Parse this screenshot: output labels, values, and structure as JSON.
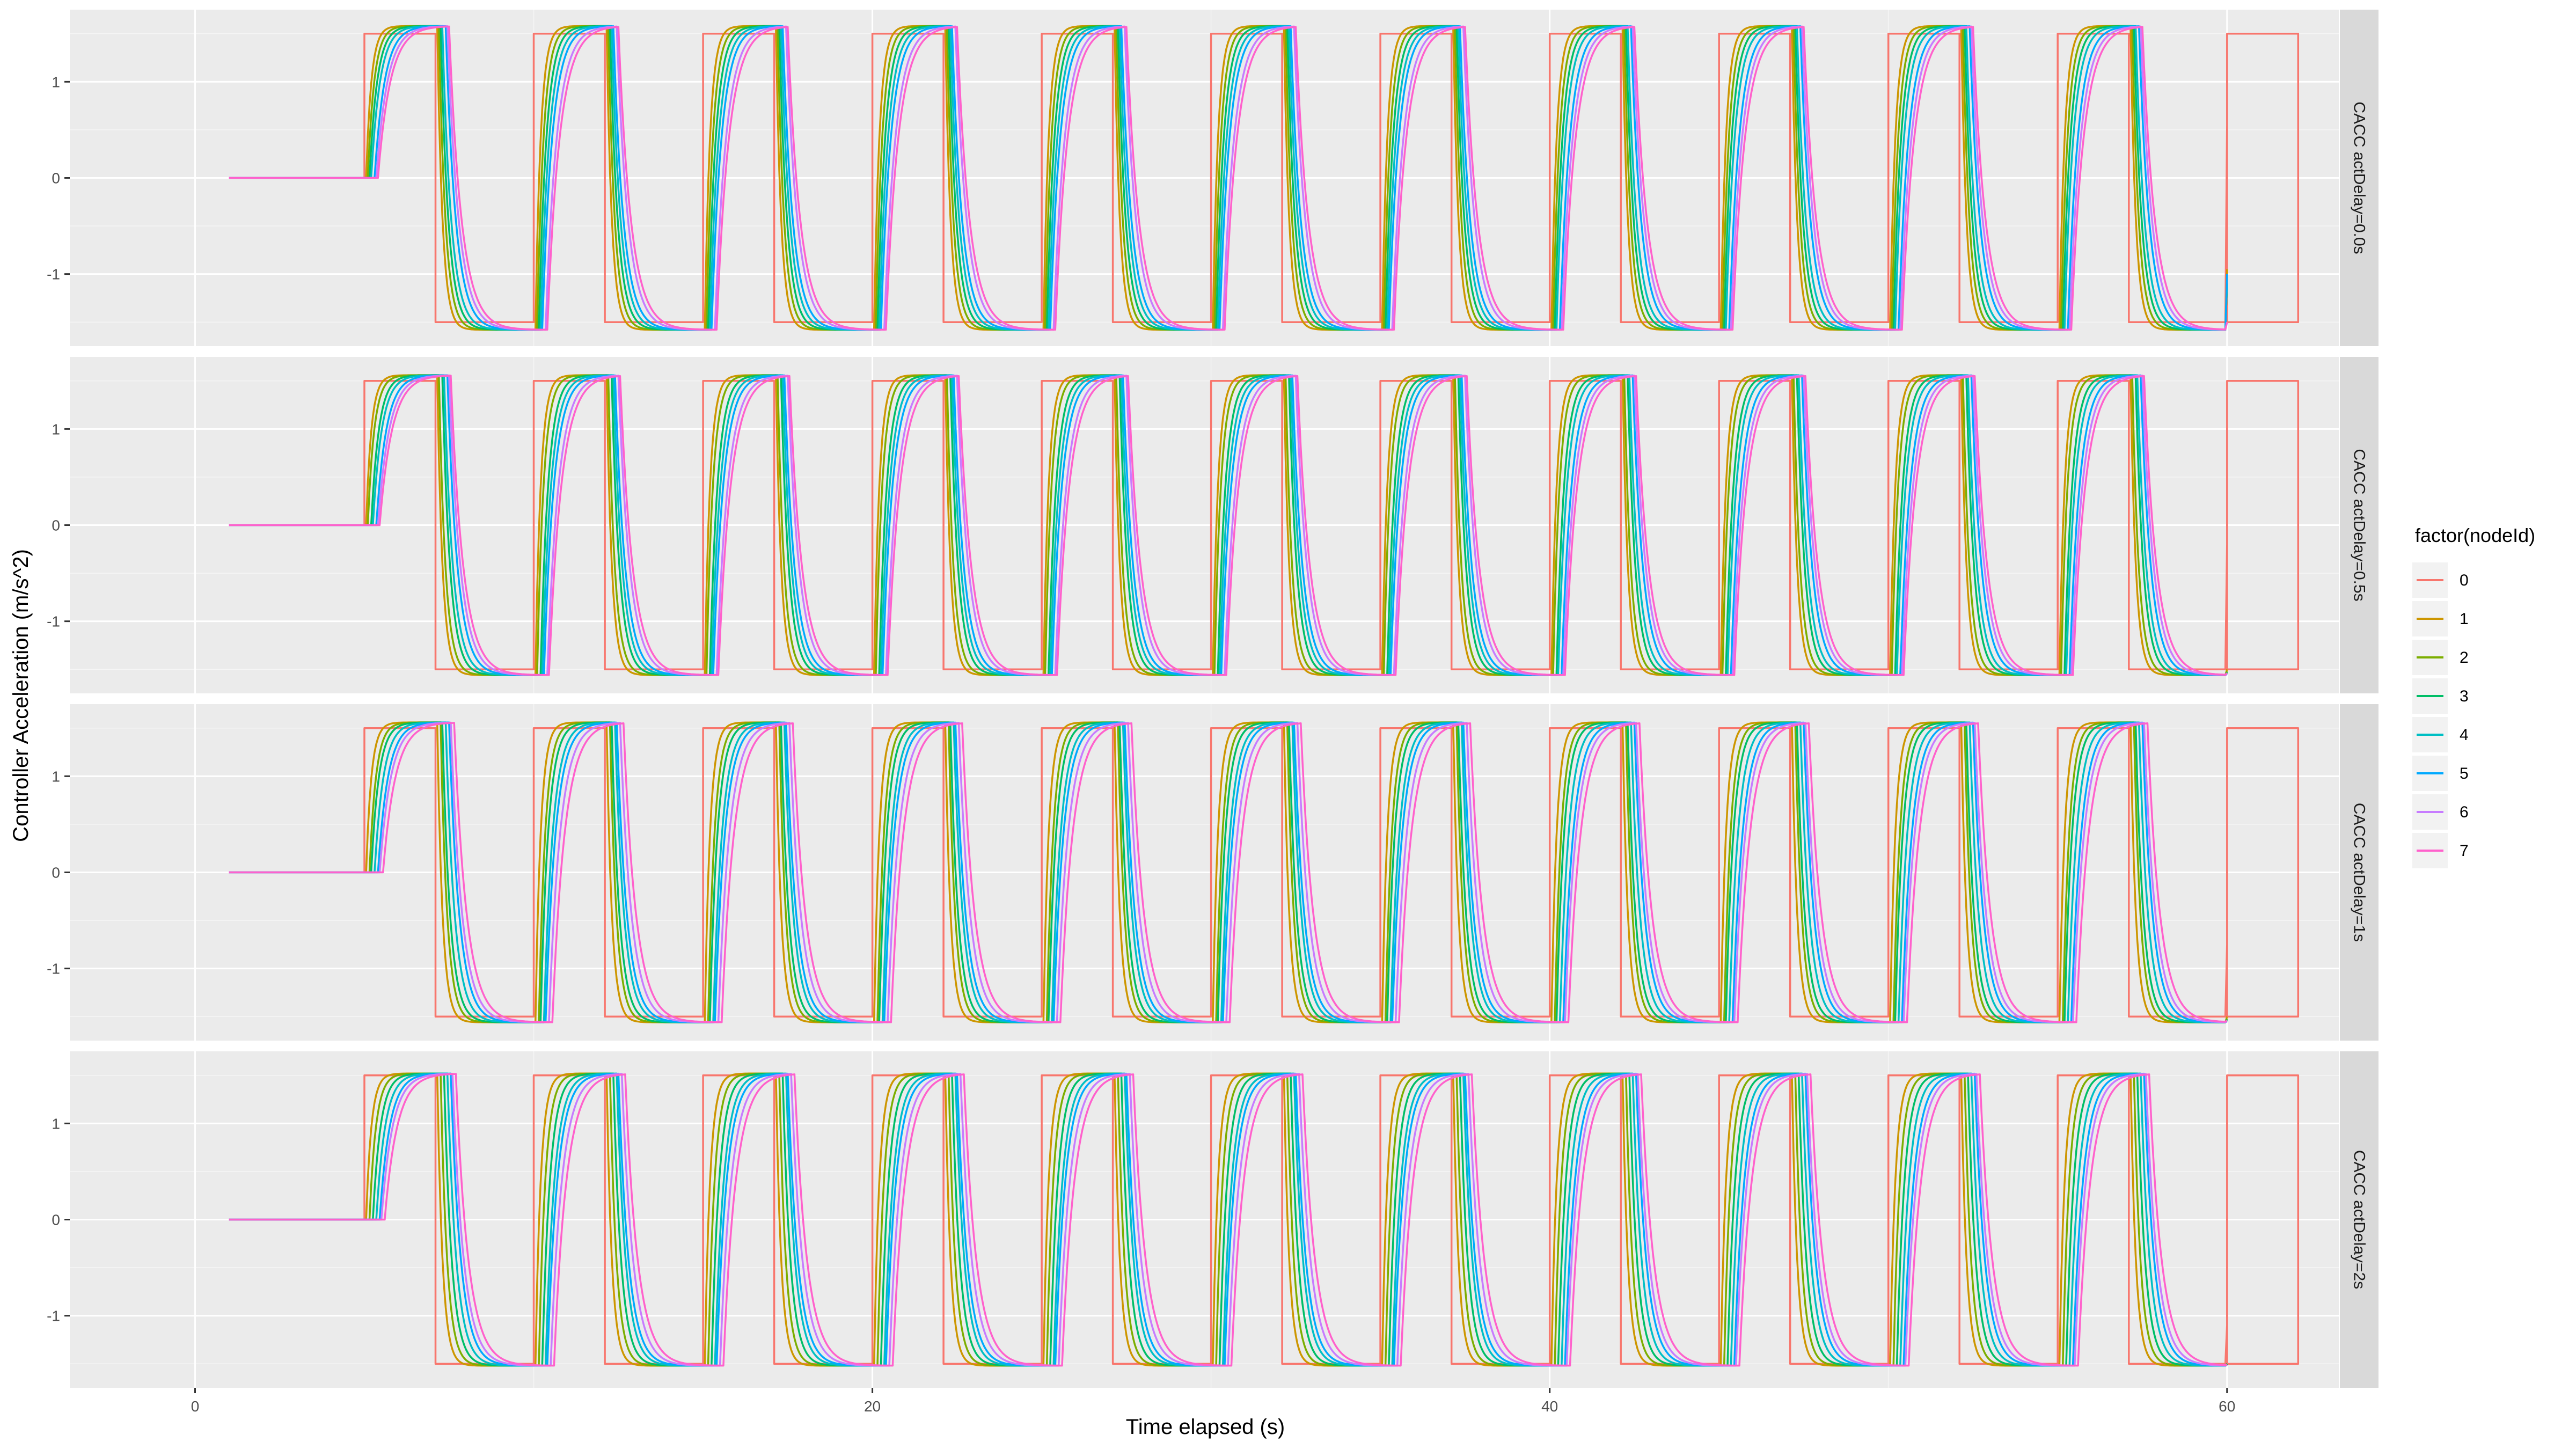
{
  "chart_data": {
    "type": "line",
    "xlabel": "Time elapsed (s)",
    "ylabel": "Controller Acceleration (m/s^2)",
    "xlim": [
      -3.7,
      63.3
    ],
    "ylim": [
      -1.75,
      1.75
    ],
    "x_ticks": [
      0,
      20,
      40,
      60
    ],
    "y_ticks": [
      1,
      0,
      -1
    ],
    "grid": true,
    "legend": {
      "title": "factor(nodeId)",
      "position": "right",
      "entries": [
        "0",
        "1",
        "2",
        "3",
        "4",
        "5",
        "6",
        "7"
      ]
    },
    "series_colors": [
      "#F8766D",
      "#CD9600",
      "#7CAE00",
      "#00BE67",
      "#00BFC4",
      "#00A9FF",
      "#C77CFF",
      "#FF61CC"
    ],
    "signal": {
      "description": "square-wave leader acceleration, start 1.0 s at 0, first rise at 5.0 s, period 5.0 s, high 2.1 s, end 60.0 s",
      "start": 1.0,
      "first_rise": 5.0,
      "period": 5.0,
      "high_duration": 2.1,
      "end": 60.0,
      "amplitude": 1.5
    },
    "panels": [
      {
        "label": "CACC actDelay=0.0s",
        "follower_peak": 1.58,
        "lag_step": 0.06,
        "end_values": [
          0.55,
          -0.95,
          -1.1,
          -1.1,
          -1.1,
          -1.0,
          -1.5,
          -1.5
        ]
      },
      {
        "label": "CACC actDelay=0.5s",
        "follower_peak": 1.56,
        "lag_step": 0.07,
        "end_values": [
          -0.2,
          -1.5,
          -1.52,
          -1.53,
          -1.54,
          -1.55,
          -1.55,
          -1.54
        ]
      },
      {
        "label": "CACC actDelay=1s",
        "follower_peak": 1.56,
        "lag_step": 0.08,
        "end_values": [
          -0.75,
          -1.5,
          -1.52,
          -1.53,
          -1.54,
          -1.55,
          -1.55,
          -1.54
        ]
      },
      {
        "label": "CACC actDelay=2s",
        "follower_peak": 1.52,
        "lag_step": 0.09,
        "end_values": [
          -1.1,
          -1.5,
          -1.5,
          -1.5,
          -1.51,
          -1.51,
          -1.51,
          -1.51
        ]
      }
    ]
  }
}
